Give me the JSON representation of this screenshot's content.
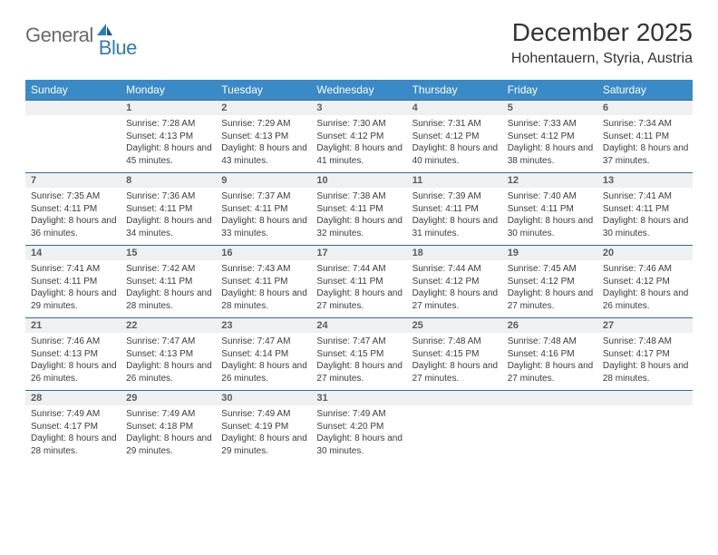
{
  "logo": {
    "part1": "General",
    "part2": "Blue"
  },
  "title": "December 2025",
  "location": "Hohentauern, Styria, Austria",
  "colors": {
    "header_bg": "#3a8ac8",
    "daynum_bg": "#eef0f2",
    "row_border": "#2f6ea8",
    "text": "#3a3a3a",
    "logo_gray": "#6a6a6a",
    "logo_blue": "#2f7bbf"
  },
  "weekdays": [
    "Sunday",
    "Monday",
    "Tuesday",
    "Wednesday",
    "Thursday",
    "Friday",
    "Saturday"
  ],
  "weeks": [
    [
      null,
      {
        "n": "1",
        "sunrise": "7:28 AM",
        "sunset": "4:13 PM",
        "daylight": "8 hours and 45 minutes."
      },
      {
        "n": "2",
        "sunrise": "7:29 AM",
        "sunset": "4:13 PM",
        "daylight": "8 hours and 43 minutes."
      },
      {
        "n": "3",
        "sunrise": "7:30 AM",
        "sunset": "4:12 PM",
        "daylight": "8 hours and 41 minutes."
      },
      {
        "n": "4",
        "sunrise": "7:31 AM",
        "sunset": "4:12 PM",
        "daylight": "8 hours and 40 minutes."
      },
      {
        "n": "5",
        "sunrise": "7:33 AM",
        "sunset": "4:12 PM",
        "daylight": "8 hours and 38 minutes."
      },
      {
        "n": "6",
        "sunrise": "7:34 AM",
        "sunset": "4:11 PM",
        "daylight": "8 hours and 37 minutes."
      }
    ],
    [
      {
        "n": "7",
        "sunrise": "7:35 AM",
        "sunset": "4:11 PM",
        "daylight": "8 hours and 36 minutes."
      },
      {
        "n": "8",
        "sunrise": "7:36 AM",
        "sunset": "4:11 PM",
        "daylight": "8 hours and 34 minutes."
      },
      {
        "n": "9",
        "sunrise": "7:37 AM",
        "sunset": "4:11 PM",
        "daylight": "8 hours and 33 minutes."
      },
      {
        "n": "10",
        "sunrise": "7:38 AM",
        "sunset": "4:11 PM",
        "daylight": "8 hours and 32 minutes."
      },
      {
        "n": "11",
        "sunrise": "7:39 AM",
        "sunset": "4:11 PM",
        "daylight": "8 hours and 31 minutes."
      },
      {
        "n": "12",
        "sunrise": "7:40 AM",
        "sunset": "4:11 PM",
        "daylight": "8 hours and 30 minutes."
      },
      {
        "n": "13",
        "sunrise": "7:41 AM",
        "sunset": "4:11 PM",
        "daylight": "8 hours and 30 minutes."
      }
    ],
    [
      {
        "n": "14",
        "sunrise": "7:41 AM",
        "sunset": "4:11 PM",
        "daylight": "8 hours and 29 minutes."
      },
      {
        "n": "15",
        "sunrise": "7:42 AM",
        "sunset": "4:11 PM",
        "daylight": "8 hours and 28 minutes."
      },
      {
        "n": "16",
        "sunrise": "7:43 AM",
        "sunset": "4:11 PM",
        "daylight": "8 hours and 28 minutes."
      },
      {
        "n": "17",
        "sunrise": "7:44 AM",
        "sunset": "4:11 PM",
        "daylight": "8 hours and 27 minutes."
      },
      {
        "n": "18",
        "sunrise": "7:44 AM",
        "sunset": "4:12 PM",
        "daylight": "8 hours and 27 minutes."
      },
      {
        "n": "19",
        "sunrise": "7:45 AM",
        "sunset": "4:12 PM",
        "daylight": "8 hours and 27 minutes."
      },
      {
        "n": "20",
        "sunrise": "7:46 AM",
        "sunset": "4:12 PM",
        "daylight": "8 hours and 26 minutes."
      }
    ],
    [
      {
        "n": "21",
        "sunrise": "7:46 AM",
        "sunset": "4:13 PM",
        "daylight": "8 hours and 26 minutes."
      },
      {
        "n": "22",
        "sunrise": "7:47 AM",
        "sunset": "4:13 PM",
        "daylight": "8 hours and 26 minutes."
      },
      {
        "n": "23",
        "sunrise": "7:47 AM",
        "sunset": "4:14 PM",
        "daylight": "8 hours and 26 minutes."
      },
      {
        "n": "24",
        "sunrise": "7:47 AM",
        "sunset": "4:15 PM",
        "daylight": "8 hours and 27 minutes."
      },
      {
        "n": "25",
        "sunrise": "7:48 AM",
        "sunset": "4:15 PM",
        "daylight": "8 hours and 27 minutes."
      },
      {
        "n": "26",
        "sunrise": "7:48 AM",
        "sunset": "4:16 PM",
        "daylight": "8 hours and 27 minutes."
      },
      {
        "n": "27",
        "sunrise": "7:48 AM",
        "sunset": "4:17 PM",
        "daylight": "8 hours and 28 minutes."
      }
    ],
    [
      {
        "n": "28",
        "sunrise": "7:49 AM",
        "sunset": "4:17 PM",
        "daylight": "8 hours and 28 minutes."
      },
      {
        "n": "29",
        "sunrise": "7:49 AM",
        "sunset": "4:18 PM",
        "daylight": "8 hours and 29 minutes."
      },
      {
        "n": "30",
        "sunrise": "7:49 AM",
        "sunset": "4:19 PM",
        "daylight": "8 hours and 29 minutes."
      },
      {
        "n": "31",
        "sunrise": "7:49 AM",
        "sunset": "4:20 PM",
        "daylight": "8 hours and 30 minutes."
      },
      null,
      null,
      null
    ]
  ],
  "labels": {
    "sunrise": "Sunrise:",
    "sunset": "Sunset:",
    "daylight": "Daylight:"
  }
}
